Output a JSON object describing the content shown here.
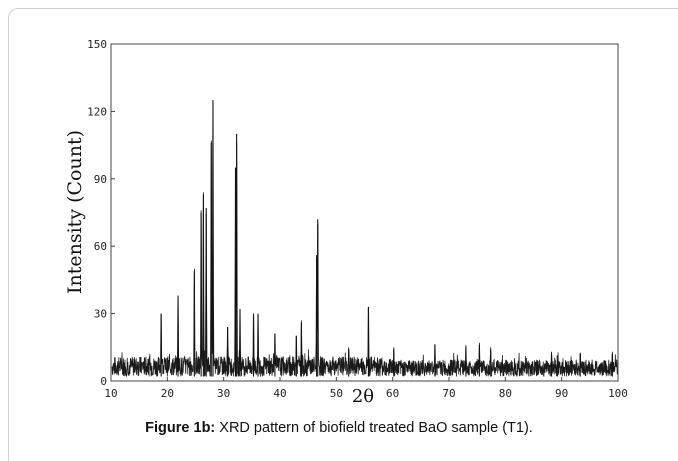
{
  "chart_data": {
    "type": "line",
    "title": "",
    "xlabel": "2θ",
    "ylabel": "Intensity (Count)",
    "xlim": [
      10,
      100
    ],
    "ylim": [
      0,
      150
    ],
    "x_ticks": [
      10,
      20,
      30,
      40,
      50,
      60,
      70,
      80,
      90,
      100
    ],
    "y_ticks": [
      0,
      30,
      60,
      90,
      120,
      150
    ],
    "x_tick_labels": [
      "10",
      "20",
      "30",
      "40",
      "50",
      "60",
      "70",
      "80",
      "90",
      "100"
    ],
    "y_tick_labels": [
      "0",
      "30",
      "60",
      "90",
      "120",
      "150"
    ],
    "grid": false,
    "baseline_noise": [
      2,
      12
    ],
    "peaks": [
      {
        "x": 18.9,
        "y": 30
      },
      {
        "x": 21.9,
        "y": 38
      },
      {
        "x": 24.8,
        "y": 49
      },
      {
        "x": 26.0,
        "y": 75
      },
      {
        "x": 26.4,
        "y": 83
      },
      {
        "x": 26.9,
        "y": 77
      },
      {
        "x": 27.8,
        "y": 106
      },
      {
        "x": 28.1,
        "y": 125
      },
      {
        "x": 30.7,
        "y": 24
      },
      {
        "x": 32.1,
        "y": 95
      },
      {
        "x": 32.3,
        "y": 110
      },
      {
        "x": 32.9,
        "y": 32
      },
      {
        "x": 35.3,
        "y": 30
      },
      {
        "x": 36.1,
        "y": 30
      },
      {
        "x": 39.1,
        "y": 21
      },
      {
        "x": 42.9,
        "y": 20
      },
      {
        "x": 43.8,
        "y": 26
      },
      {
        "x": 46.5,
        "y": 56
      },
      {
        "x": 46.7,
        "y": 72
      },
      {
        "x": 52.2,
        "y": 14
      },
      {
        "x": 55.7,
        "y": 33
      },
      {
        "x": 60.2,
        "y": 14
      },
      {
        "x": 67.5,
        "y": 16
      },
      {
        "x": 73.0,
        "y": 15
      },
      {
        "x": 75.4,
        "y": 16
      },
      {
        "x": 77.4,
        "y": 14
      },
      {
        "x": 88.2,
        "y": 12
      },
      {
        "x": 93.3,
        "y": 12
      },
      {
        "x": 99.0,
        "y": 12
      }
    ]
  },
  "caption": {
    "label": "Figure 1b:",
    "text": " XRD pattern of biofield treated BaO sample (T1)."
  }
}
